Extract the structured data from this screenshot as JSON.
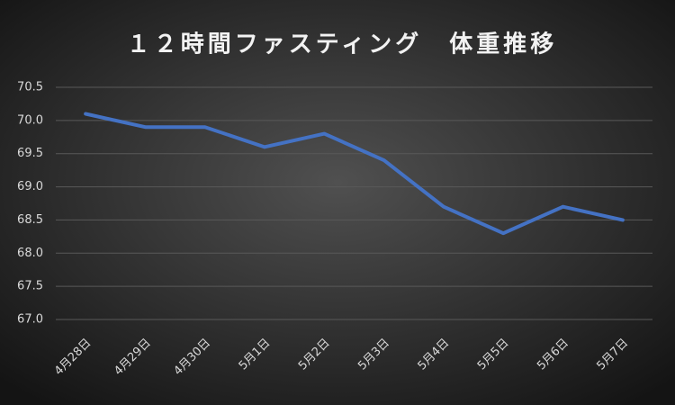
{
  "chart_data": {
    "type": "line",
    "title": "１２時間ファスティング　体重推移",
    "categories": [
      "4月28日",
      "4月29日",
      "4月30日",
      "5月1日",
      "5月2日",
      "5月3日",
      "5月4日",
      "5月5日",
      "5月6日",
      "5月7日"
    ],
    "series": [
      {
        "name": "体重",
        "color": "#4472c4",
        "values": [
          70.1,
          69.9,
          69.9,
          69.6,
          69.8,
          69.4,
          68.7,
          68.3,
          68.7,
          68.5
        ]
      }
    ],
    "ylim": [
      67,
      70.5
    ],
    "yticks": [
      {
        "value": 67,
        "label": "67.0"
      },
      67.5,
      {
        "value": 68,
        "label": "68.0"
      },
      68.5,
      {
        "value": 69,
        "label": "69.0"
      },
      69.5,
      {
        "value": 70,
        "label": "70.0"
      },
      70.5
    ],
    "grid": true
  }
}
